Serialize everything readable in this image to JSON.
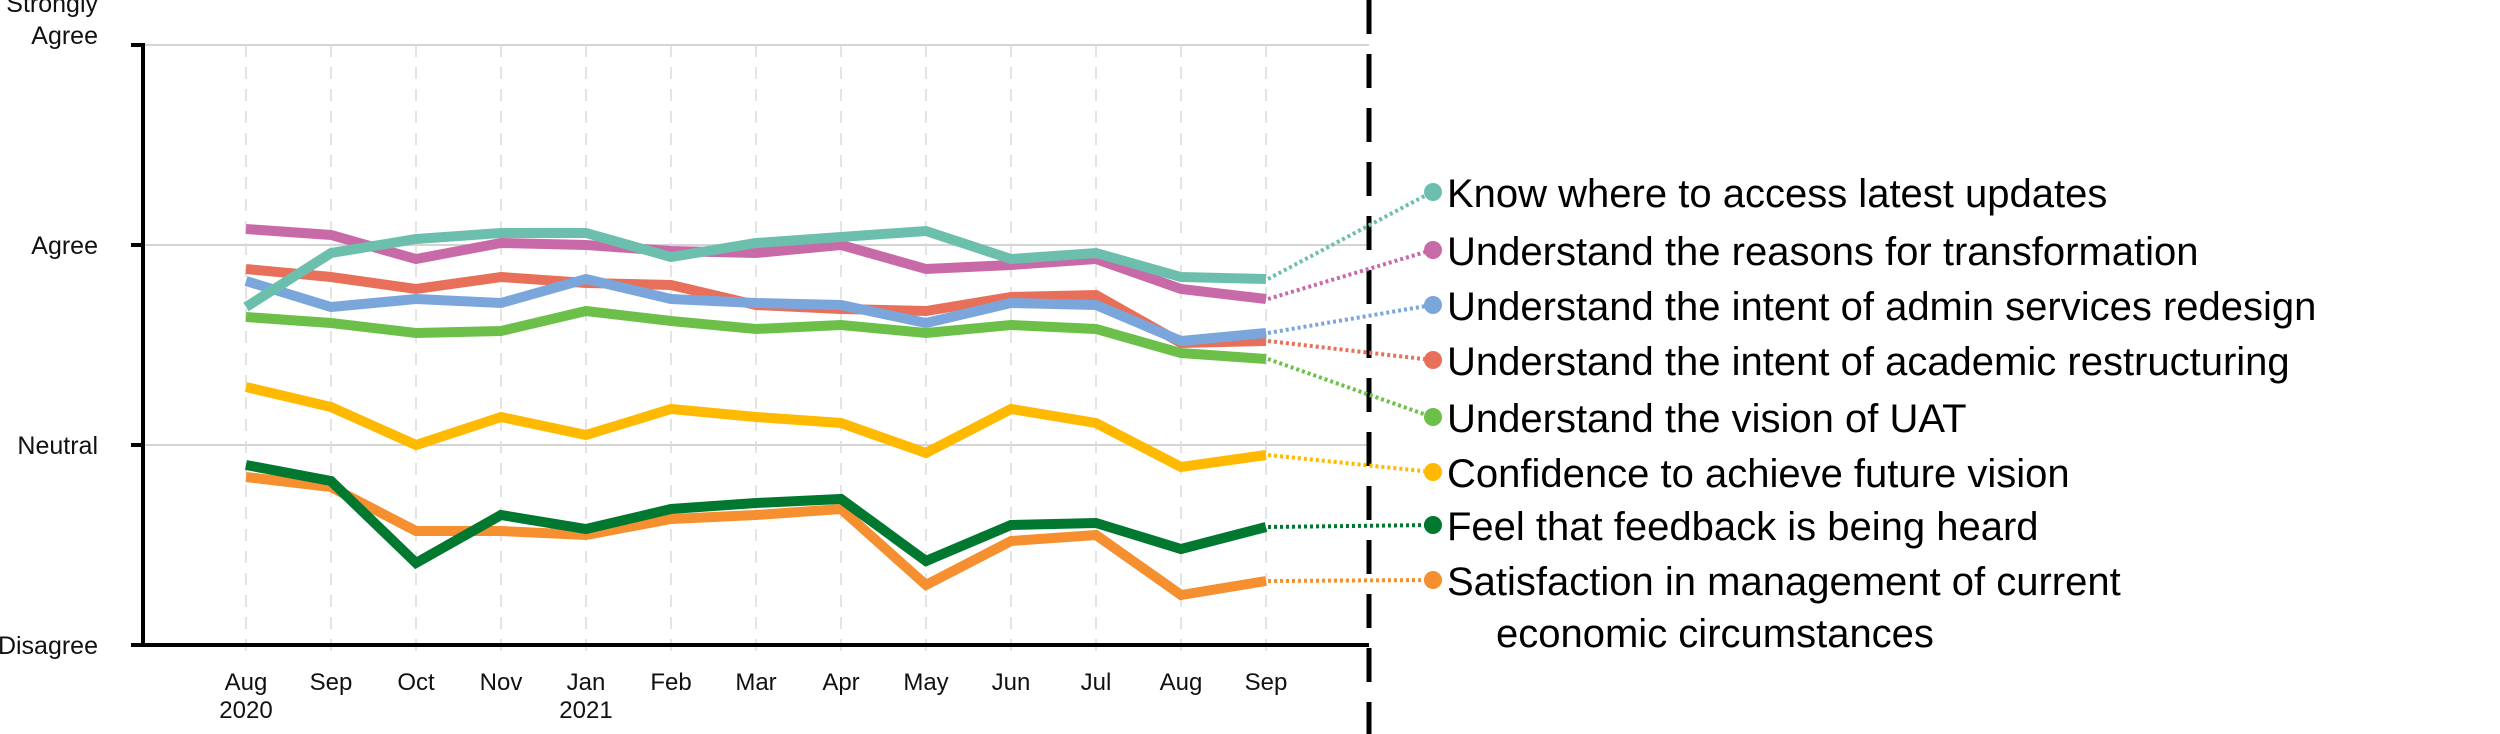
{
  "chart_data": {
    "type": "line",
    "title": "",
    "xlabel": "",
    "ylabel": "",
    "y_scale": [
      "Disagree",
      "Neutral",
      "Agree",
      "Strongly Agree"
    ],
    "y_tick_labels": [
      {
        "value": 2,
        "lines": [
          "Disagree"
        ]
      },
      {
        "value": 3,
        "lines": [
          "Neutral"
        ]
      },
      {
        "value": 4,
        "lines": [
          "Agree"
        ]
      },
      {
        "value": 5,
        "lines": [
          "Strongly",
          "Agree"
        ]
      }
    ],
    "ylim": [
      2,
      5
    ],
    "grid": true,
    "legend_placement": "right",
    "categories": [
      {
        "month": "Aug",
        "year": "2020"
      },
      {
        "month": "Sep",
        "year": ""
      },
      {
        "month": "Oct",
        "year": ""
      },
      {
        "month": "Nov",
        "year": ""
      },
      {
        "month": "Jan",
        "year": "2021"
      },
      {
        "month": "Feb",
        "year": ""
      },
      {
        "month": "Mar",
        "year": ""
      },
      {
        "month": "Apr",
        "year": ""
      },
      {
        "month": "May",
        "year": ""
      },
      {
        "month": "Jun",
        "year": ""
      },
      {
        "month": "Jul",
        "year": ""
      },
      {
        "month": "Aug",
        "year": ""
      },
      {
        "month": "Sep",
        "year": ""
      }
    ],
    "series": [
      {
        "name": "Know where to access latest updates",
        "color": "#6dbfad",
        "values": [
          3.69,
          3.96,
          4.03,
          4.06,
          4.06,
          3.94,
          4.01,
          4.04,
          4.07,
          3.93,
          3.96,
          3.84,
          3.83
        ]
      },
      {
        "name": "Understand the reasons for transformation",
        "color": "#c96aa8",
        "values": [
          4.08,
          4.05,
          3.93,
          4.01,
          4.0,
          3.97,
          3.96,
          4.0,
          3.88,
          3.9,
          3.93,
          3.78,
          3.73
        ]
      },
      {
        "name": "Understand the intent of admin services redesign",
        "color": "#7ba6dc",
        "values": [
          3.82,
          3.69,
          3.73,
          3.71,
          3.83,
          3.73,
          3.71,
          3.7,
          3.61,
          3.71,
          3.7,
          3.52,
          3.56
        ]
      },
      {
        "name": "Understand the intent of academic restructuring",
        "color": "#e8705a",
        "values": [
          3.88,
          3.84,
          3.78,
          3.84,
          3.81,
          3.8,
          3.7,
          3.68,
          3.67,
          3.74,
          3.75,
          3.51,
          3.52
        ]
      },
      {
        "name": "Understand the vision of UAT",
        "color": "#6cc04a",
        "values": [
          3.64,
          3.61,
          3.56,
          3.57,
          3.67,
          3.62,
          3.58,
          3.6,
          3.56,
          3.6,
          3.58,
          3.46,
          3.43
        ]
      },
      {
        "name": "Confidence to achieve future vision",
        "color": "#ffb900",
        "values": [
          3.29,
          3.19,
          3.0,
          3.14,
          3.05,
          3.18,
          3.14,
          3.11,
          2.96,
          3.18,
          3.11,
          2.89,
          2.95
        ]
      },
      {
        "name": "Feel that feedback is being heard",
        "color": "#00782f",
        "values": [
          2.9,
          2.82,
          2.41,
          2.65,
          2.58,
          2.68,
          2.71,
          2.73,
          2.42,
          2.6,
          2.61,
          2.48,
          2.59
        ]
      },
      {
        "name": "Satisfaction in management of current economic circumstances",
        "color": "#f58f30",
        "name_lines": [
          "Satisfaction in management of current",
          "economic circumstances"
        ],
        "values": [
          2.84,
          2.79,
          2.57,
          2.57,
          2.55,
          2.63,
          2.65,
          2.68,
          2.3,
          2.52,
          2.55,
          2.25,
          2.32
        ]
      }
    ]
  }
}
